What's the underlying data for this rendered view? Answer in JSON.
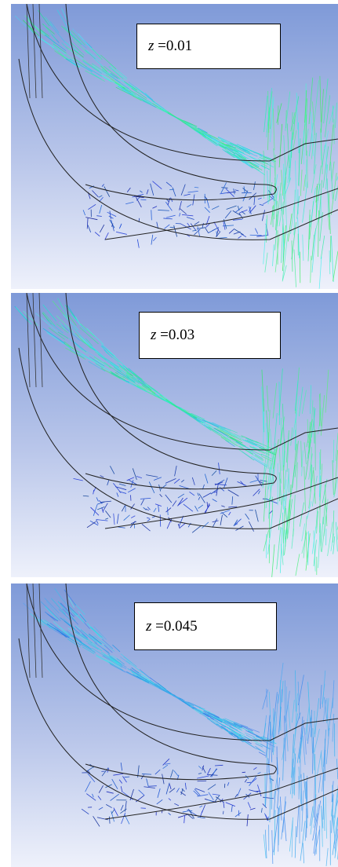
{
  "panels": [
    {
      "label_var": "z",
      "label_rest": " =0.01"
    },
    {
      "label_var": "z",
      "label_rest": " =0.03"
    },
    {
      "label_var": "z",
      "label_rest": " =0.045"
    }
  ]
}
